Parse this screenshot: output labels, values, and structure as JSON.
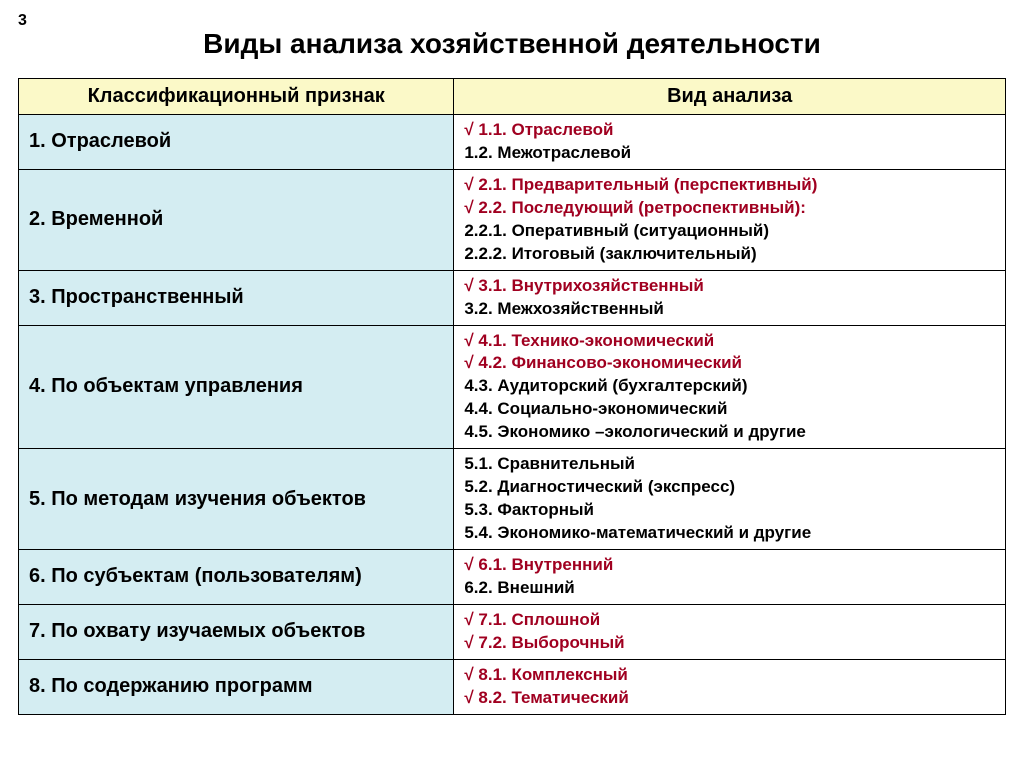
{
  "page_number": "3",
  "title": "Виды анализа хозяйственной деятельности",
  "colors": {
    "header_bg": "#fbf9c8",
    "category_bg": "#d4edf2",
    "check_color": "#a00020",
    "border": "#000000"
  },
  "headers": {
    "left": "Классификационный признак",
    "right": "Вид анализа"
  },
  "rows": [
    {
      "category": "1. Отраслевой",
      "items": [
        {
          "checked": true,
          "text": "1.1. Отраслевой"
        },
        {
          "checked": false,
          "text": "1.2. Межотраслевой"
        }
      ]
    },
    {
      "category": "2. Временной",
      "items": [
        {
          "checked": true,
          "text": "2.1. Предварительный (перспективный)"
        },
        {
          "checked": true,
          "text": "2.2. Последующий (ретроспективный):"
        },
        {
          "checked": false,
          "text": "2.2.1. Оперативный (ситуационный)"
        },
        {
          "checked": false,
          "text": "2.2.2. Итоговый (заключительный)"
        }
      ]
    },
    {
      "category": "3. Пространственный",
      "items": [
        {
          "checked": true,
          "text": "3.1. Внутрихозяйственный"
        },
        {
          "checked": false,
          "text": "3.2. Межхозяйственный"
        }
      ]
    },
    {
      "category": "4. По объектам управления",
      "items": [
        {
          "checked": true,
          "text": "4.1. Технико-экономический"
        },
        {
          "checked": true,
          "text": "4.2. Финансово-экономический"
        },
        {
          "checked": false,
          "text": "4.3. Аудиторский (бухгалтерский)"
        },
        {
          "checked": false,
          "text": "4.4. Социально-экономический"
        },
        {
          "checked": false,
          "text": "4.5. Экономико –экологический и другие"
        }
      ]
    },
    {
      "category": "5. По методам изучения объектов",
      "items": [
        {
          "checked": false,
          "text": "5.1. Сравнительный"
        },
        {
          "checked": false,
          "text": "5.2. Диагностический (экспресс)"
        },
        {
          "checked": false,
          "text": "5.3. Факторный"
        },
        {
          "checked": false,
          "text": "5.4. Экономико-математический и другие"
        }
      ]
    },
    {
      "category": "6. По субъектам (пользователям)",
      "items": [
        {
          "checked": true,
          "text": "6.1. Внутренний"
        },
        {
          "checked": false,
          "text": "6.2. Внешний"
        }
      ]
    },
    {
      "category": "7. По охвату изучаемых объектов",
      "items": [
        {
          "checked": true,
          "text": "7.1. Сплошной"
        },
        {
          "checked": true,
          "text": "7.2. Выборочный"
        }
      ]
    },
    {
      "category": "8. По содержанию программ",
      "items": [
        {
          "checked": true,
          "text": "8.1. Комплексный"
        },
        {
          "checked": true,
          "text": "8.2. Тематический"
        }
      ]
    }
  ]
}
